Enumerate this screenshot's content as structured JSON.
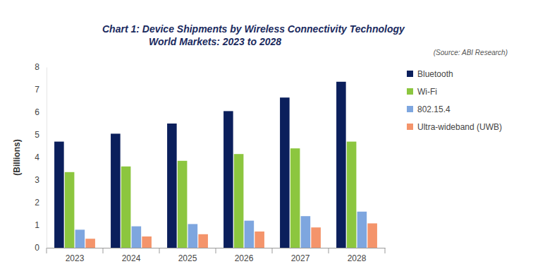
{
  "chart_data": {
    "type": "bar",
    "title": "Chart 1: Device Shipments by Wireless Connectivity Technology",
    "subtitle": "World Markets: 2023 to 2028",
    "annotations": [
      "(Source: ABI Research)"
    ],
    "y_label": "(Billions)",
    "categories": [
      "2023",
      "2024",
      "2025",
      "2026",
      "2027",
      "2028"
    ],
    "series": [
      {
        "name": "Bluetooth",
        "color": "#0b1f5c",
        "values": [
          4.7,
          5.05,
          5.5,
          6.05,
          6.65,
          7.35
        ]
      },
      {
        "name": "Wi-Fi",
        "color": "#8cc63f",
        "values": [
          3.35,
          3.6,
          3.85,
          4.15,
          4.4,
          4.7
        ]
      },
      {
        "name": "802.15.4",
        "color": "#7ea6df",
        "values": [
          0.8,
          0.95,
          1.05,
          1.2,
          1.4,
          1.6
        ]
      },
      {
        "name": "Ultra-wideband (UWB)",
        "color": "#f4946b",
        "values": [
          0.4,
          0.5,
          0.6,
          0.72,
          0.9,
          1.08
        ]
      }
    ],
    "ylim": [
      0,
      8
    ],
    "yticks": [
      0,
      1,
      2,
      3,
      4,
      5,
      6,
      7,
      8
    ],
    "grid": false,
    "legend": "right"
  }
}
